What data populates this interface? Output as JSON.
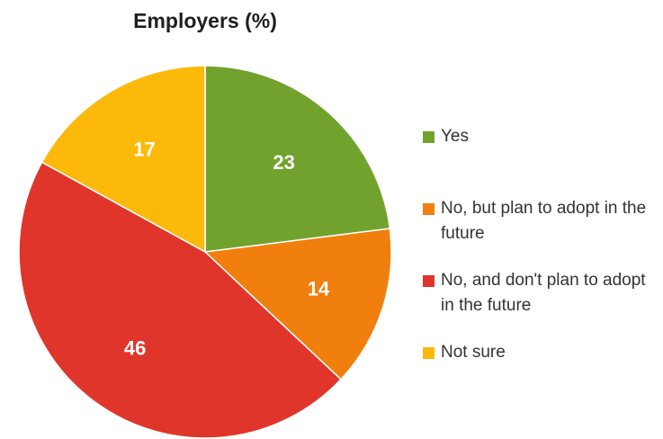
{
  "chart_data": {
    "type": "pie",
    "title": "Employers (%)",
    "categories": [
      "Yes",
      "No, but plan to adopt in the future",
      "No, and don't plan to adopt in the future",
      "Not sure"
    ],
    "values": [
      23,
      14,
      46,
      17
    ],
    "data_labels": [
      "23",
      "14",
      "46",
      "17"
    ],
    "colors": [
      "#72A22E",
      "#F07F0E",
      "#E0352B",
      "#FDB90A"
    ],
    "start_angle": "12 o'clock",
    "direction": "clockwise",
    "legend_position": "right"
  }
}
